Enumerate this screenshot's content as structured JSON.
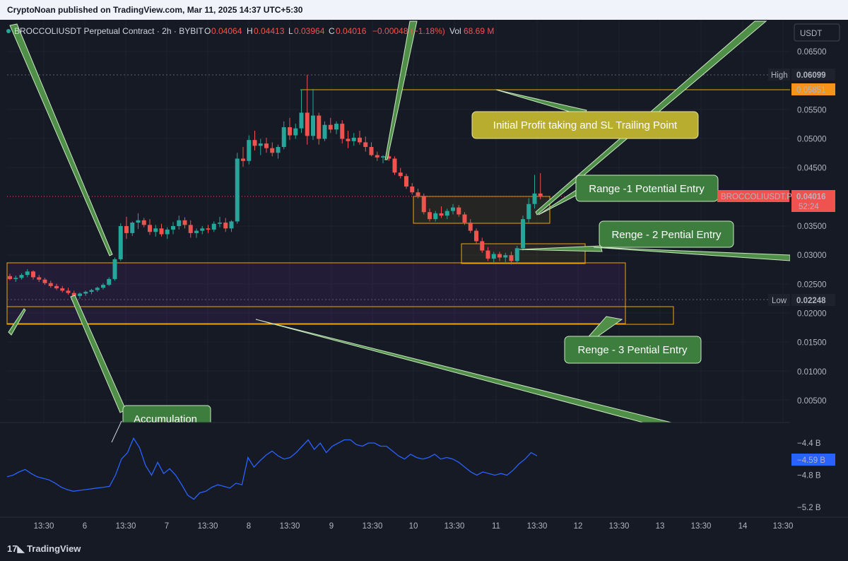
{
  "header": {
    "publisher_line": "CryptoNoan published on TradingView.com, Mar 11, 2025 14:37 UTC+5:30"
  },
  "legend": {
    "symbol": "BROCCOLIUSDT Perpetual Contract · 2h · BYBIT",
    "o_label": "O",
    "o_value": "0.04064",
    "h_label": "H",
    "h_value": "0.04413",
    "l_label": "L",
    "l_value": "0.03964",
    "c_label": "C",
    "c_value": "0.04016",
    "change": "−0.00048 (−1.18%)",
    "vol_label": "Vol",
    "vol_value": "68.69 M"
  },
  "price_axis": {
    "currency": "USDT",
    "ticks": [
      "0.06500",
      "0.05500",
      "0.05000",
      "0.04500",
      "0.03500",
      "0.03000",
      "0.02500",
      "0.02000",
      "0.01500",
      "0.01000",
      "0.00500"
    ],
    "high_label": "High",
    "high_value": "0.06099",
    "level_value": "0.05851",
    "low_label": "Low",
    "low_value": "0.02248",
    "current_symbol": "BROCCOLIUSDT.P",
    "current_price": "0.04016",
    "countdown": "52:24"
  },
  "indicator_axis": {
    "ticks": [
      "−4.4 B",
      "−4.8 B",
      "−5.2 B"
    ],
    "current": "−4.59 B"
  },
  "time_axis": [
    "13:30",
    "6",
    "13:30",
    "7",
    "13:30",
    "8",
    "13:30",
    "9",
    "13:30",
    "10",
    "13:30",
    "11",
    "13:30",
    "12",
    "13:30",
    "13",
    "13:30",
    "14",
    "13:30"
  ],
  "annotations": {
    "profit": "Initial Profit taking and SL Trailing Point",
    "range1": "Range -1 Potential Entry",
    "range2": "Renge - 2 Pential Entry",
    "range3": "Renge - 3 Pential Entry",
    "accumulation": "Accumulation"
  },
  "colors": {
    "up": "#26a69a",
    "down": "#ef5350",
    "background": "#161a25",
    "indicator": "#2962ff",
    "zone_border": "#f0a500",
    "callout_green": "#3d7d3d",
    "callout_yellow": "#b8ad2e"
  },
  "footer": {
    "brand": "TradingView"
  },
  "chart_data": {
    "type": "candlestick",
    "price_series": [
      {
        "o": 0.0264,
        "h": 0.0268,
        "l": 0.0257,
        "c": 0.0259
      },
      {
        "o": 0.0259,
        "h": 0.0265,
        "l": 0.0254,
        "c": 0.0261
      },
      {
        "o": 0.0261,
        "h": 0.0269,
        "l": 0.0258,
        "c": 0.0266
      },
      {
        "o": 0.0266,
        "h": 0.0276,
        "l": 0.0262,
        "c": 0.0272
      },
      {
        "o": 0.0272,
        "h": 0.0274,
        "l": 0.0258,
        "c": 0.0262
      },
      {
        "o": 0.0262,
        "h": 0.0266,
        "l": 0.0254,
        "c": 0.0258
      },
      {
        "o": 0.0258,
        "h": 0.0261,
        "l": 0.0249,
        "c": 0.0252
      },
      {
        "o": 0.0252,
        "h": 0.0256,
        "l": 0.0244,
        "c": 0.0247
      },
      {
        "o": 0.0247,
        "h": 0.0251,
        "l": 0.024,
        "c": 0.0243
      },
      {
        "o": 0.0243,
        "h": 0.0247,
        "l": 0.0236,
        "c": 0.0239
      },
      {
        "o": 0.0239,
        "h": 0.0244,
        "l": 0.0232,
        "c": 0.0235
      },
      {
        "o": 0.0235,
        "h": 0.0239,
        "l": 0.0225,
        "c": 0.023
      },
      {
        "o": 0.023,
        "h": 0.0236,
        "l": 0.0225,
        "c": 0.0234
      },
      {
        "o": 0.0234,
        "h": 0.0239,
        "l": 0.023,
        "c": 0.0237
      },
      {
        "o": 0.0237,
        "h": 0.0242,
        "l": 0.0233,
        "c": 0.024
      },
      {
        "o": 0.024,
        "h": 0.0246,
        "l": 0.0237,
        "c": 0.0244
      },
      {
        "o": 0.0244,
        "h": 0.0252,
        "l": 0.0241,
        "c": 0.0249
      },
      {
        "o": 0.0249,
        "h": 0.0262,
        "l": 0.0247,
        "c": 0.0259
      },
      {
        "o": 0.0259,
        "h": 0.0296,
        "l": 0.0256,
        "c": 0.0293
      },
      {
        "o": 0.0293,
        "h": 0.0355,
        "l": 0.029,
        "c": 0.035
      },
      {
        "o": 0.035,
        "h": 0.0366,
        "l": 0.0328,
        "c": 0.0338
      },
      {
        "o": 0.0338,
        "h": 0.0358,
        "l": 0.0333,
        "c": 0.0356
      },
      {
        "o": 0.0356,
        "h": 0.0372,
        "l": 0.0345,
        "c": 0.036
      },
      {
        "o": 0.036,
        "h": 0.0364,
        "l": 0.0348,
        "c": 0.0352
      },
      {
        "o": 0.0352,
        "h": 0.0362,
        "l": 0.0335,
        "c": 0.034
      },
      {
        "o": 0.034,
        "h": 0.0352,
        "l": 0.0332,
        "c": 0.0346
      },
      {
        "o": 0.0346,
        "h": 0.0354,
        "l": 0.0332,
        "c": 0.0336
      },
      {
        "o": 0.0336,
        "h": 0.0348,
        "l": 0.0328,
        "c": 0.0344
      },
      {
        "o": 0.0344,
        "h": 0.0357,
        "l": 0.0336,
        "c": 0.035
      },
      {
        "o": 0.035,
        "h": 0.0368,
        "l": 0.0344,
        "c": 0.036
      },
      {
        "o": 0.036,
        "h": 0.0365,
        "l": 0.0346,
        "c": 0.0352
      },
      {
        "o": 0.0352,
        "h": 0.036,
        "l": 0.033,
        "c": 0.0338
      },
      {
        "o": 0.0338,
        "h": 0.0346,
        "l": 0.033,
        "c": 0.0342
      },
      {
        "o": 0.0342,
        "h": 0.035,
        "l": 0.0336,
        "c": 0.0346
      },
      {
        "o": 0.0346,
        "h": 0.0352,
        "l": 0.0338,
        "c": 0.0344
      },
      {
        "o": 0.0344,
        "h": 0.0358,
        "l": 0.034,
        "c": 0.0354
      },
      {
        "o": 0.0354,
        "h": 0.0366,
        "l": 0.0348,
        "c": 0.0356
      },
      {
        "o": 0.0356,
        "h": 0.0364,
        "l": 0.034,
        "c": 0.0346
      },
      {
        "o": 0.0346,
        "h": 0.036,
        "l": 0.034,
        "c": 0.0358
      },
      {
        "o": 0.0358,
        "h": 0.0476,
        "l": 0.0354,
        "c": 0.0466
      },
      {
        "o": 0.0466,
        "h": 0.0486,
        "l": 0.0452,
        "c": 0.0462
      },
      {
        "o": 0.0462,
        "h": 0.0506,
        "l": 0.0456,
        "c": 0.0498
      },
      {
        "o": 0.0498,
        "h": 0.0514,
        "l": 0.048,
        "c": 0.0488
      },
      {
        "o": 0.0488,
        "h": 0.05,
        "l": 0.0472,
        "c": 0.0492
      },
      {
        "o": 0.0492,
        "h": 0.0502,
        "l": 0.0476,
        "c": 0.0484
      },
      {
        "o": 0.0484,
        "h": 0.0494,
        "l": 0.047,
        "c": 0.0476
      },
      {
        "o": 0.0476,
        "h": 0.049,
        "l": 0.0466,
        "c": 0.0486
      },
      {
        "o": 0.0486,
        "h": 0.053,
        "l": 0.0482,
        "c": 0.052
      },
      {
        "o": 0.052,
        "h": 0.0536,
        "l": 0.0498,
        "c": 0.0506
      },
      {
        "o": 0.0506,
        "h": 0.0526,
        "l": 0.05,
        "c": 0.0518
      },
      {
        "o": 0.0518,
        "h": 0.0585,
        "l": 0.051,
        "c": 0.0545
      },
      {
        "o": 0.0545,
        "h": 0.061,
        "l": 0.049,
        "c": 0.0505
      },
      {
        "o": 0.0505,
        "h": 0.0586,
        "l": 0.0498,
        "c": 0.054
      },
      {
        "o": 0.054,
        "h": 0.0545,
        "l": 0.049,
        "c": 0.05
      },
      {
        "o": 0.05,
        "h": 0.053,
        "l": 0.0496,
        "c": 0.0524
      },
      {
        "o": 0.0524,
        "h": 0.0536,
        "l": 0.051,
        "c": 0.0516
      },
      {
        "o": 0.0516,
        "h": 0.053,
        "l": 0.0508,
        "c": 0.0526
      },
      {
        "o": 0.0526,
        "h": 0.0532,
        "l": 0.0492,
        "c": 0.05
      },
      {
        "o": 0.05,
        "h": 0.0514,
        "l": 0.0484,
        "c": 0.0496
      },
      {
        "o": 0.0496,
        "h": 0.051,
        "l": 0.0488,
        "c": 0.0502
      },
      {
        "o": 0.0502,
        "h": 0.0514,
        "l": 0.049,
        "c": 0.0494
      },
      {
        "o": 0.0494,
        "h": 0.0504,
        "l": 0.0478,
        "c": 0.0486
      },
      {
        "o": 0.0486,
        "h": 0.0494,
        "l": 0.047,
        "c": 0.0472
      },
      {
        "o": 0.0472,
        "h": 0.0478,
        "l": 0.0462,
        "c": 0.0468
      },
      {
        "o": 0.0468,
        "h": 0.0472,
        "l": 0.0458,
        "c": 0.047
      },
      {
        "o": 0.047,
        "h": 0.0478,
        "l": 0.0462,
        "c": 0.0466
      },
      {
        "o": 0.0466,
        "h": 0.047,
        "l": 0.0438,
        "c": 0.0442
      },
      {
        "o": 0.0442,
        "h": 0.045,
        "l": 0.0432,
        "c": 0.0436
      },
      {
        "o": 0.0436,
        "h": 0.044,
        "l": 0.0414,
        "c": 0.0418
      },
      {
        "o": 0.0418,
        "h": 0.0424,
        "l": 0.0404,
        "c": 0.0408
      },
      {
        "o": 0.0408,
        "h": 0.0414,
        "l": 0.0398,
        "c": 0.0402
      },
      {
        "o": 0.0402,
        "h": 0.0406,
        "l": 0.037,
        "c": 0.0374
      },
      {
        "o": 0.0374,
        "h": 0.038,
        "l": 0.0358,
        "c": 0.0362
      },
      {
        "o": 0.0362,
        "h": 0.0376,
        "l": 0.0358,
        "c": 0.0372
      },
      {
        "o": 0.0372,
        "h": 0.0384,
        "l": 0.0364,
        "c": 0.0368
      },
      {
        "o": 0.0368,
        "h": 0.038,
        "l": 0.0362,
        "c": 0.0376
      },
      {
        "o": 0.0376,
        "h": 0.0388,
        "l": 0.037,
        "c": 0.0382
      },
      {
        "o": 0.0382,
        "h": 0.0386,
        "l": 0.0366,
        "c": 0.037
      },
      {
        "o": 0.037,
        "h": 0.0374,
        "l": 0.0352,
        "c": 0.0356
      },
      {
        "o": 0.0356,
        "h": 0.0362,
        "l": 0.0338,
        "c": 0.0342
      },
      {
        "o": 0.0342,
        "h": 0.0346,
        "l": 0.032,
        "c": 0.0324
      },
      {
        "o": 0.0324,
        "h": 0.033,
        "l": 0.0304,
        "c": 0.0308
      },
      {
        "o": 0.0308,
        "h": 0.0314,
        "l": 0.029,
        "c": 0.0294
      },
      {
        "o": 0.0294,
        "h": 0.0306,
        "l": 0.0288,
        "c": 0.0302
      },
      {
        "o": 0.0302,
        "h": 0.0306,
        "l": 0.029,
        "c": 0.0296
      },
      {
        "o": 0.0296,
        "h": 0.0304,
        "l": 0.0288,
        "c": 0.03
      },
      {
        "o": 0.03,
        "h": 0.0306,
        "l": 0.0284,
        "c": 0.029
      },
      {
        "o": 0.029,
        "h": 0.0316,
        "l": 0.0286,
        "c": 0.0312
      },
      {
        "o": 0.0312,
        "h": 0.0368,
        "l": 0.0308,
        "c": 0.0362
      },
      {
        "o": 0.0362,
        "h": 0.0398,
        "l": 0.0356,
        "c": 0.0388
      },
      {
        "o": 0.0388,
        "h": 0.0438,
        "l": 0.038,
        "c": 0.0406
      },
      {
        "o": 0.0406,
        "h": 0.0441,
        "l": 0.0396,
        "c": 0.0402
      }
    ],
    "indicator_series": [
      -4.82,
      -4.8,
      -4.76,
      -4.73,
      -4.78,
      -4.82,
      -4.84,
      -4.86,
      -4.9,
      -4.95,
      -4.98,
      -5.0,
      -4.99,
      -4.98,
      -4.97,
      -4.96,
      -4.95,
      -4.94,
      -4.8,
      -4.6,
      -4.52,
      -4.34,
      -4.46,
      -4.68,
      -4.8,
      -4.64,
      -4.78,
      -4.72,
      -4.8,
      -4.92,
      -5.05,
      -5.1,
      -5.02,
      -5.0,
      -4.95,
      -4.92,
      -4.94,
      -4.96,
      -4.9,
      -4.92,
      -4.58,
      -4.7,
      -4.62,
      -4.55,
      -4.5,
      -4.56,
      -4.6,
      -4.58,
      -4.52,
      -4.44,
      -4.36,
      -4.48,
      -4.4,
      -4.52,
      -4.44,
      -4.4,
      -4.36,
      -4.36,
      -4.42,
      -4.44,
      -4.4,
      -4.4,
      -4.44,
      -4.44,
      -4.5,
      -4.56,
      -4.6,
      -4.54,
      -4.58,
      -4.6,
      -4.58,
      -4.54,
      -4.6,
      -4.58,
      -4.6,
      -4.64,
      -4.7,
      -4.76,
      -4.8,
      -4.76,
      -4.78,
      -4.8,
      -4.78,
      -4.8,
      -4.74,
      -4.66,
      -4.6,
      -4.52,
      -4.56
    ]
  }
}
